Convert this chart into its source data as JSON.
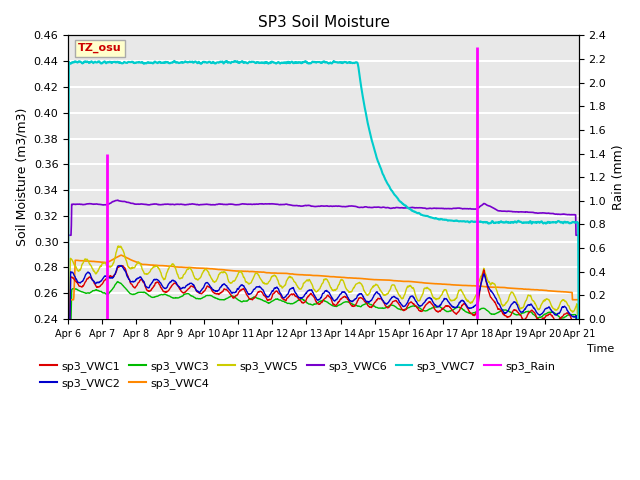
{
  "title": "SP3 Soil Moisture",
  "ylabel_left": "Soil Moisture (m3/m3)",
  "ylabel_right": "Rain (mm)",
  "xlabel": "Time",
  "annotation_text": "TZ_osu",
  "annotation_color": "#cc0000",
  "annotation_bg": "#ffffcc",
  "annotation_border": "#aaaaaa",
  "ylim_left": [
    0.24,
    0.46
  ],
  "ylim_right": [
    0.0,
    2.4
  ],
  "bg_color": "#e8e8e8",
  "grid_color": "white",
  "xtick_labels": [
    "Apr 6",
    "Apr 7",
    "Apr 8",
    "Apr 9",
    "Apr 10",
    "Apr 11",
    "Apr 12",
    "Apr 13",
    "Apr 14",
    "Apr 15",
    "Apr 16",
    "Apr 17",
    "Apr 18",
    "Apr 19",
    "Apr 20",
    "Apr 21"
  ],
  "series_colors": {
    "VWC1": "#dd0000",
    "VWC2": "#0000cc",
    "VWC3": "#00bb00",
    "VWC4": "#ff8800",
    "VWC5": "#cccc00",
    "VWC6": "#7700cc",
    "VWC7": "#00cccc",
    "Rain": "#ff00ff"
  },
  "legend_entries_row1": [
    {
      "label": "sp3_VWC1",
      "color": "#dd0000"
    },
    {
      "label": "sp3_VWC2",
      "color": "#0000cc"
    },
    {
      "label": "sp3_VWC3",
      "color": "#00bb00"
    },
    {
      "label": "sp3_VWC4",
      "color": "#ff8800"
    },
    {
      "label": "sp3_VWC5",
      "color": "#cccc00"
    },
    {
      "label": "sp3_VWC6",
      "color": "#7700cc"
    }
  ],
  "legend_entries_row2": [
    {
      "label": "sp3_VWC7",
      "color": "#00cccc"
    },
    {
      "label": "sp3_Rain",
      "color": "#ff00ff"
    }
  ],
  "yticks": [
    0.24,
    0.26,
    0.28,
    0.3,
    0.32,
    0.34,
    0.36,
    0.38,
    0.4,
    0.42,
    0.44,
    0.46
  ],
  "yticks_right": [
    0.0,
    0.2,
    0.4,
    0.6,
    0.8,
    1.0,
    1.2,
    1.4,
    1.6,
    1.8,
    2.0,
    2.2,
    2.4
  ]
}
